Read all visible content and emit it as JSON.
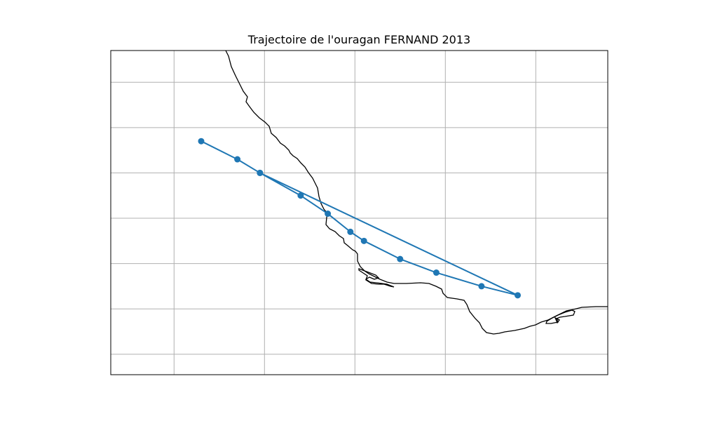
{
  "title": "Trajectoire de l'ouragan FERNAND 2013",
  "map": {
    "grid": true,
    "grid_color": "#b0b0b0",
    "coastline_color": "#000000",
    "frame_color": "#000000"
  },
  "track": {
    "color": "#1f77b4",
    "marker": "circle",
    "points": [
      {
        "lon": -97.7,
        "lat": 20.85
      },
      {
        "lon": -97.3,
        "lat": 20.65
      },
      {
        "lon": -97.05,
        "lat": 20.5
      },
      {
        "lon": -96.6,
        "lat": 20.25
      },
      {
        "lon": -96.3,
        "lat": 20.05
      },
      {
        "lon": -96.05,
        "lat": 19.85
      },
      {
        "lon": -95.9,
        "lat": 19.75
      },
      {
        "lon": -95.5,
        "lat": 19.55
      },
      {
        "lon": -95.1,
        "lat": 19.4
      },
      {
        "lon": -94.6,
        "lat": 19.25
      },
      {
        "lon": -94.2,
        "lat": 19.15
      },
      {
        "lon": -97.05,
        "lat": 20.5
      }
    ]
  }
}
